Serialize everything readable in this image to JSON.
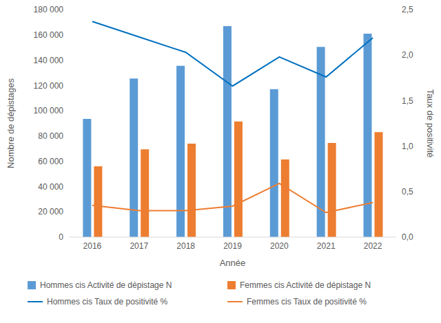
{
  "chart_data": {
    "type": "bar",
    "x_label": "Année",
    "y_label": "Nombre de dépistages",
    "y2_label": "Taux de positivité",
    "categories": [
      "2016",
      "2017",
      "2018",
      "2019",
      "2020",
      "2021",
      "2022"
    ],
    "series": [
      {
        "name": "Hommes cis Activité de dépistage N",
        "type": "bar",
        "color": "#5b9bd5",
        "values": [
          93500,
          125500,
          135500,
          167000,
          117000,
          150500,
          161000
        ]
      },
      {
        "name": "Femmes cis Activité de dépistage N",
        "type": "bar",
        "color": "#ed7d31",
        "values": [
          56000,
          69500,
          74000,
          91500,
          61500,
          74500,
          83000
        ]
      },
      {
        "name": "Hommes cis Taux de positivité %",
        "type": "line",
        "axis": "y2",
        "color": "#0070c0",
        "values": [
          2.37,
          2.2,
          2.03,
          1.66,
          1.98,
          1.76,
          2.19
        ]
      },
      {
        "name": "Femmes cis Taux de positivité %",
        "type": "line",
        "axis": "y2",
        "color": "#ed7d31",
        "values": [
          0.35,
          0.29,
          0.29,
          0.34,
          0.59,
          0.27,
          0.38
        ]
      }
    ],
    "ylim": [
      0,
      180000
    ],
    "yticks": [
      0,
      {
        "value": 20000,
        "label": "20 000"
      },
      {
        "value": 40000,
        "label": "40 000"
      },
      {
        "value": 60000,
        "label": "60 000"
      },
      {
        "value": 80000,
        "label": "80 000"
      },
      {
        "value": 100000,
        "label": "100 000"
      },
      {
        "value": 120000,
        "label": "120 000"
      },
      {
        "value": 140000,
        "label": "140 000"
      },
      {
        "value": 160000,
        "label": "160 000"
      },
      {
        "value": 180000,
        "label": "180 000"
      }
    ],
    "y2lim": [
      0,
      2.5
    ],
    "y2ticks": [
      {
        "value": 0,
        "label": "0,0"
      },
      {
        "value": 0.5,
        "label": "0,5"
      },
      {
        "value": 1,
        "label": "1,0"
      },
      {
        "value": 1.5,
        "label": "1,5"
      },
      {
        "value": 2,
        "label": "2,0"
      },
      {
        "value": 2.5,
        "label": "2,5"
      }
    ],
    "grid": false,
    "legend": "bottom"
  }
}
